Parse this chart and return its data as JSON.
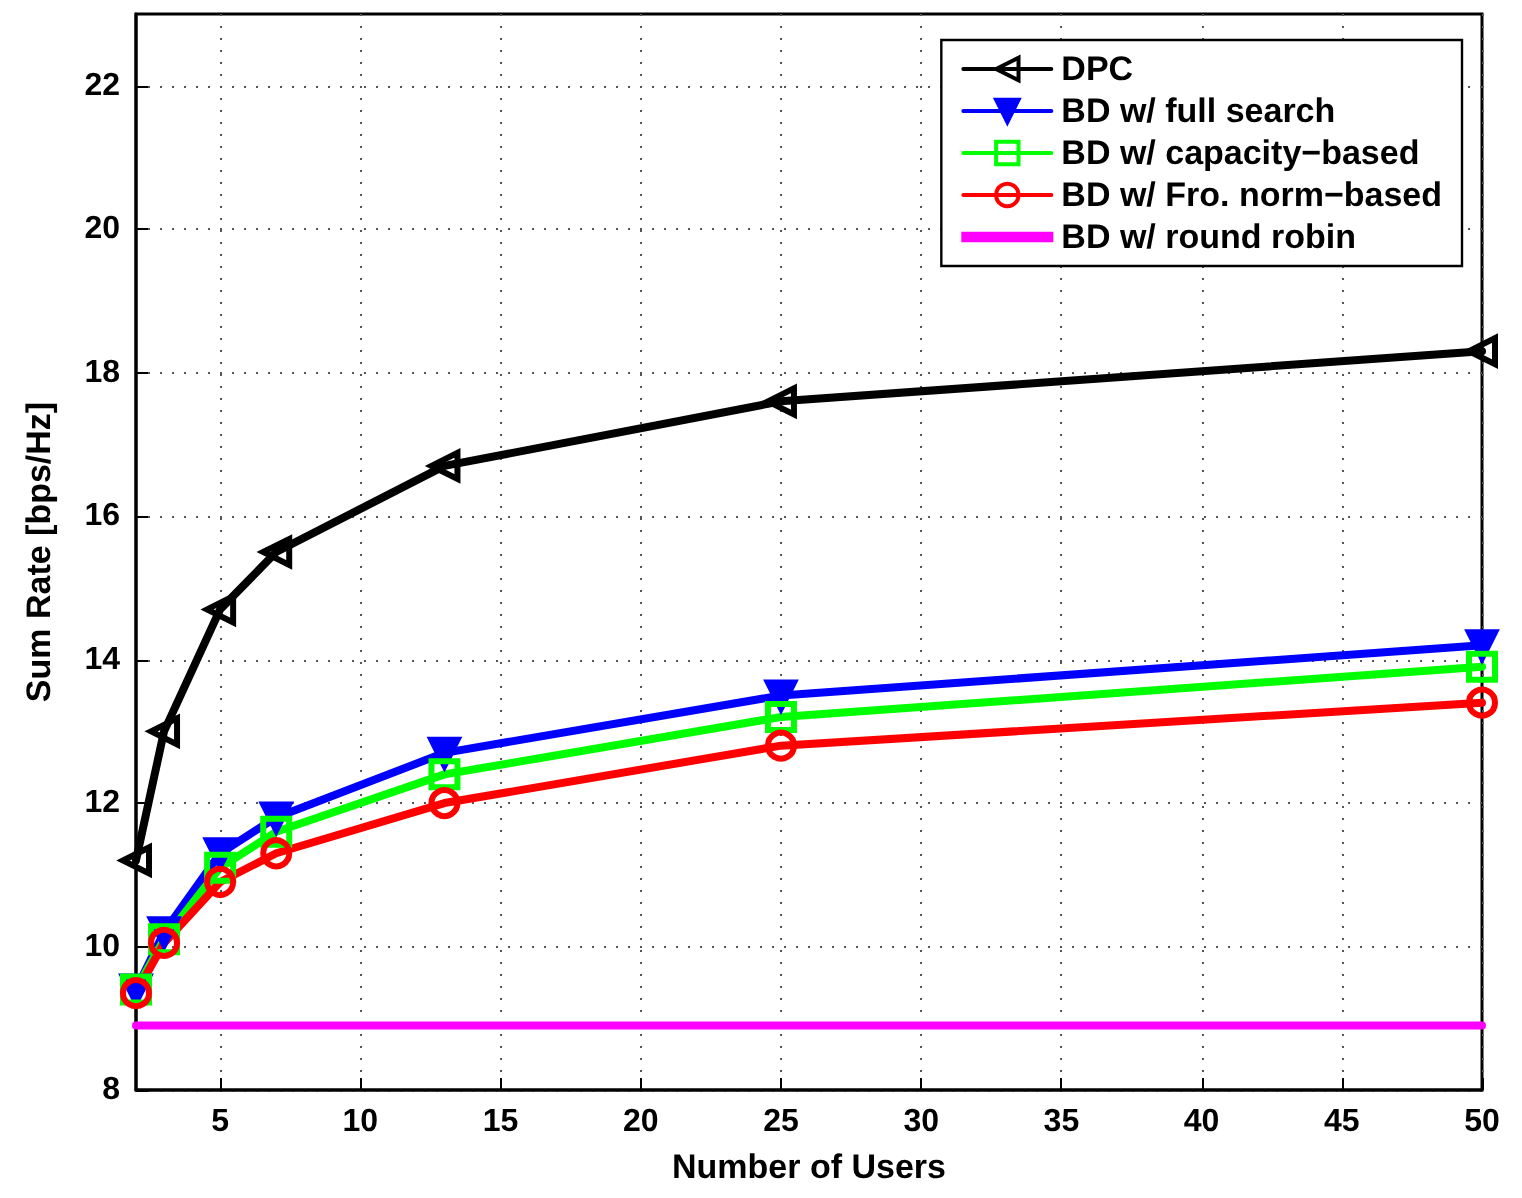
{
  "chart_data": {
    "type": "line",
    "xlabel": "Number of Users",
    "ylabel": "Sum Rate [bps/Hz]",
    "x": [
      2,
      3,
      5,
      7,
      13,
      25,
      50
    ],
    "series": [
      {
        "name": "DPC",
        "color": "#000000",
        "marker": "triangle-left",
        "values": [
          11.2,
          13.0,
          14.7,
          15.5,
          16.7,
          17.6,
          18.3
        ]
      },
      {
        "name": "BD w/ full search",
        "color": "#0000ff",
        "marker": "triangle-down",
        "values": [
          9.4,
          10.2,
          11.3,
          11.8,
          12.7,
          13.5,
          14.2
        ]
      },
      {
        "name": "BD w/ capacity−based",
        "color": "#00ff00",
        "marker": "square",
        "values": [
          9.4,
          10.1,
          11.1,
          11.6,
          12.4,
          13.2,
          13.9
        ]
      },
      {
        "name": "BD w/ Fro. norm−based",
        "color": "#ff0000",
        "marker": "circle",
        "values": [
          9.35,
          10.05,
          10.9,
          11.3,
          12.0,
          12.8,
          13.4
        ]
      },
      {
        "name": "BD w/ round robin",
        "color": "#ff00ff",
        "marker": "none",
        "x": [
          2,
          50
        ],
        "values": [
          8.9,
          8.9
        ]
      }
    ],
    "xlim": [
      2,
      50
    ],
    "xticks": [
      5,
      10,
      15,
      20,
      25,
      30,
      35,
      40,
      45,
      50
    ],
    "ylim": [
      8,
      23
    ],
    "yticks": [
      8,
      10,
      12,
      14,
      16,
      18,
      20,
      22
    ],
    "grid": true,
    "legend": "top right",
    "line_style": "solid"
  }
}
